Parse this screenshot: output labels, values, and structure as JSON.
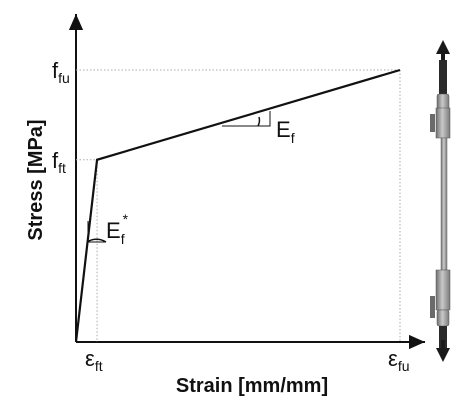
{
  "chart_data": {
    "type": "line",
    "xlabel": "Strain [mm/mm]",
    "ylabel": "Stress [MPa]",
    "xlim": [
      0,
      1
    ],
    "ylim": [
      0,
      1
    ],
    "x_ticks": [
      {
        "x": 0.065,
        "base": "ε",
        "sub": "ft"
      },
      {
        "x": 1.0,
        "base": "ε",
        "sub": "fu"
      }
    ],
    "y_ticks": [
      {
        "y": 0.67,
        "base": "f",
        "sub": "ft"
      },
      {
        "y": 1.0,
        "base": "f",
        "sub": "fu"
      }
    ],
    "series": [
      {
        "x": [
          0,
          0.065,
          1.0
        ],
        "y": [
          0,
          0.67,
          1.0
        ]
      }
    ],
    "annotations": [
      {
        "base": "E",
        "sub": "f",
        "sup": "*",
        "at": "initial-segment"
      },
      {
        "base": "E",
        "sub": "f",
        "sup": "",
        "at": "second-segment"
      }
    ],
    "grid": false
  },
  "colors": {
    "line": "#111111",
    "guide": "#aaaaaa",
    "specimen_body": "#9a9a9a",
    "specimen_dark": "#2a2a2a"
  },
  "icons": {
    "specimen": "tensile-specimen-icon",
    "arrow_up": "arrow-up-icon",
    "arrow_down": "arrow-down-icon"
  }
}
